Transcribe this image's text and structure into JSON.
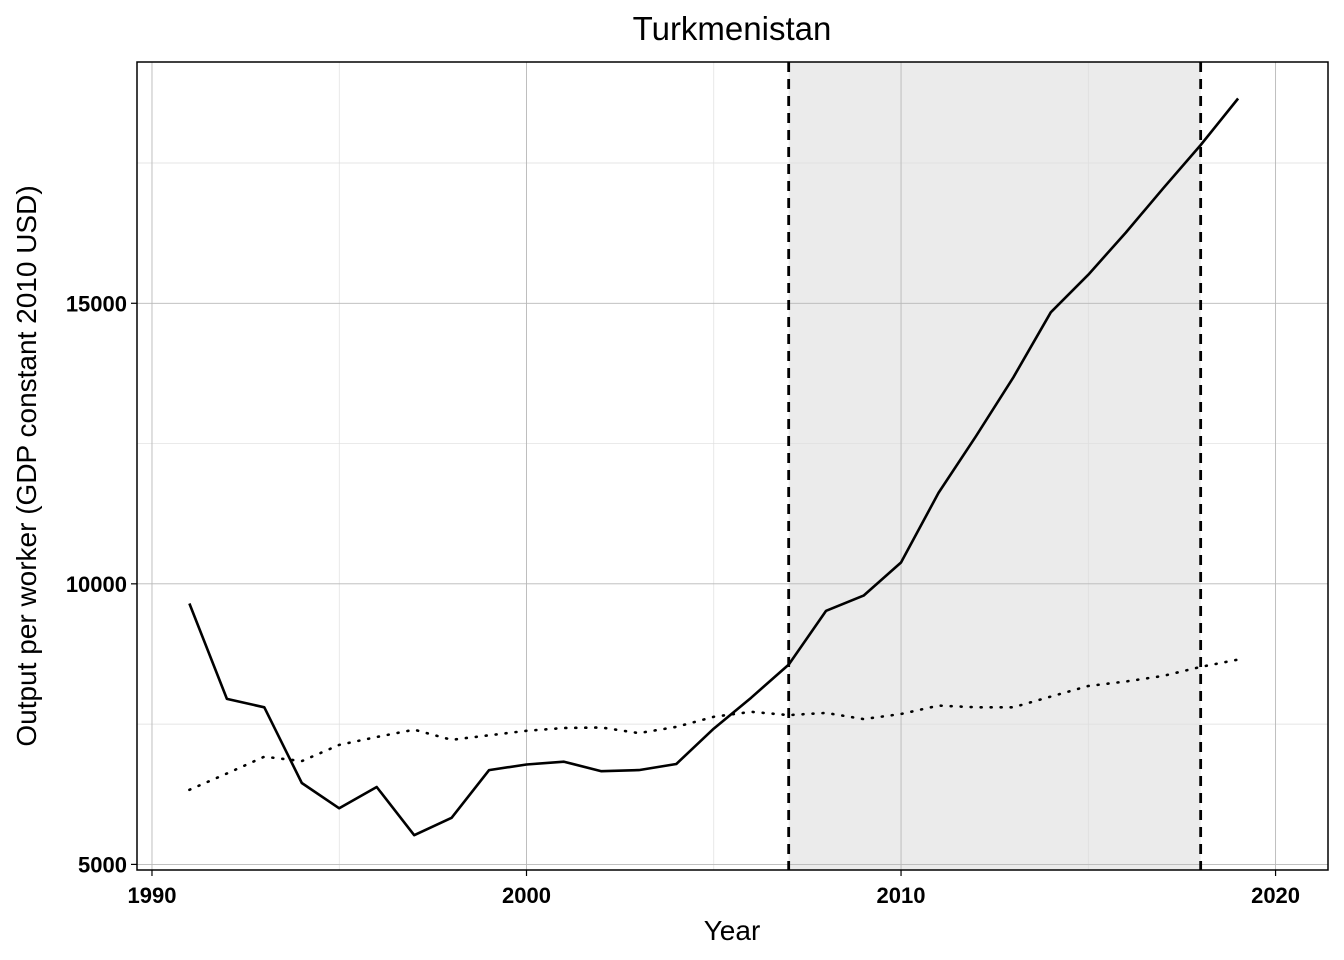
{
  "chart_data": {
    "type": "line",
    "title": "Turkmenistan",
    "xlabel": "Year",
    "ylabel": "Output per worker (GDP constant 2010 USD)",
    "xlim": [
      1989.6,
      2021.4
    ],
    "ylim": [
      4900,
      19300
    ],
    "x_ticks": [
      1990,
      2000,
      2010,
      2020
    ],
    "x_tick_labels": [
      "1990",
      "2000",
      "2010",
      "2020"
    ],
    "y_ticks": [
      5000,
      10000,
      15000
    ],
    "y_tick_labels": [
      "5000",
      "10000",
      "15000"
    ],
    "x_minor_ticks": [
      1995,
      2005,
      2015
    ],
    "y_minor_ticks": [
      7500,
      12500,
      17500
    ],
    "grid": true,
    "shaded_region": {
      "x_start": 2007,
      "x_end": 2018,
      "color": "#ebebeb"
    },
    "vertical_lines": [
      {
        "x": 2007,
        "style": "dashed"
      },
      {
        "x": 2018,
        "style": "dashed"
      }
    ],
    "series": [
      {
        "style": "solid",
        "color": "#000000",
        "x": [
          1991,
          1992,
          1993,
          1994,
          1995,
          1996,
          1997,
          1998,
          1999,
          2000,
          2001,
          2002,
          2003,
          2004,
          2005,
          2006,
          2007,
          2008,
          2009,
          2010,
          2011,
          2012,
          2013,
          2014,
          2015,
          2016,
          2017,
          2018,
          2019
        ],
        "values": [
          9650,
          7950,
          7800,
          6450,
          6000,
          6380,
          5520,
          5830,
          6680,
          6780,
          6830,
          6660,
          6680,
          6790,
          7420,
          7970,
          8560,
          9520,
          9790,
          10380,
          11620,
          12630,
          13680,
          14840,
          15510,
          16260,
          17050,
          17820,
          18650
        ]
      },
      {
        "style": "dotted",
        "color": "#000000",
        "x": [
          1991,
          1992,
          1993,
          1994,
          1995,
          1996,
          1997,
          1998,
          1999,
          2000,
          2001,
          2002,
          2003,
          2004,
          2005,
          2006,
          2007,
          2008,
          2009,
          2010,
          2011,
          2012,
          2013,
          2014,
          2015,
          2016,
          2017,
          2018,
          2019
        ],
        "values": [
          6330,
          6620,
          6920,
          6840,
          7130,
          7270,
          7400,
          7220,
          7300,
          7380,
          7430,
          7440,
          7340,
          7450,
          7630,
          7720,
          7660,
          7700,
          7590,
          7680,
          7830,
          7800,
          7800,
          7990,
          8180,
          8260,
          8360,
          8520,
          8650
        ]
      }
    ]
  }
}
